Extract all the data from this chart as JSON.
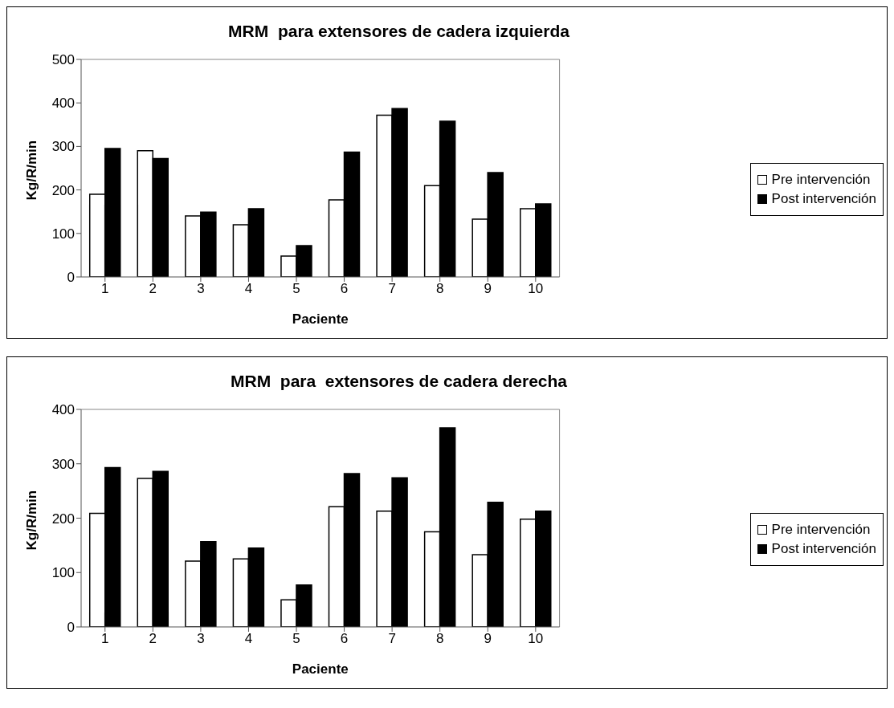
{
  "chart_data": [
    {
      "type": "bar",
      "title": "MRM  para extensores de cadera izquierda",
      "xlabel": "Paciente",
      "ylabel": "Kg/R/min",
      "categories": [
        "1",
        "2",
        "3",
        "4",
        "5",
        "6",
        "7",
        "8",
        "9",
        "10"
      ],
      "series": [
        {
          "name": "Pre intervención",
          "color": "#ffffff",
          "values": [
            190,
            290,
            140,
            120,
            48,
            177,
            372,
            210,
            133,
            157
          ]
        },
        {
          "name": "Post intervención",
          "color": "#000000",
          "values": [
            295,
            272,
            149,
            157,
            72,
            287,
            387,
            358,
            240,
            168
          ]
        }
      ],
      "ylim": [
        0,
        500
      ],
      "yticks": [
        0,
        100,
        200,
        300,
        400,
        500
      ],
      "grid": false,
      "legend": "right"
    },
    {
      "type": "bar",
      "title": "MRM  para  extensores de cadera derecha",
      "xlabel": "Paciente",
      "ylabel": "Kg/R/min",
      "categories": [
        "1",
        "2",
        "3",
        "4",
        "5",
        "6",
        "7",
        "8",
        "9",
        "10"
      ],
      "series": [
        {
          "name": "Pre intervención",
          "color": "#ffffff",
          "values": [
            209,
            273,
            121,
            125,
            50,
            221,
            213,
            175,
            133,
            198
          ]
        },
        {
          "name": "Post intervención",
          "color": "#000000",
          "values": [
            293,
            286,
            157,
            145,
            77,
            282,
            274,
            366,
            229,
            213
          ]
        }
      ],
      "ylim": [
        0,
        400
      ],
      "yticks": [
        0,
        100,
        200,
        300,
        400
      ],
      "grid": false,
      "legend": "right"
    }
  ]
}
